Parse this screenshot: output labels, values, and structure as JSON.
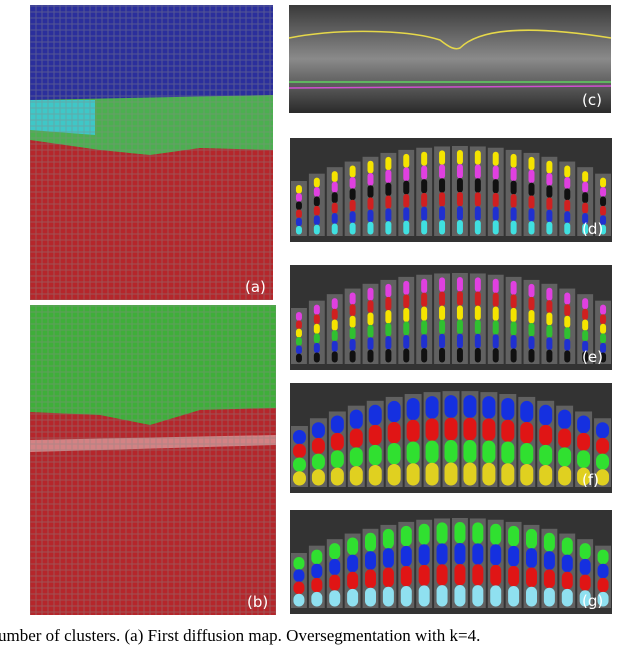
{
  "figure": {
    "panels": [
      {
        "label": "(a)"
      },
      {
        "label": "(b)"
      },
      {
        "label": "(c)"
      },
      {
        "label": "(d)"
      },
      {
        "label": "(e)"
      },
      {
        "label": "(f)"
      },
      {
        "label": "(g)"
      }
    ],
    "caption": "umber of clusters. (a) First diffusion map. Oversegmentation with k=4."
  }
}
